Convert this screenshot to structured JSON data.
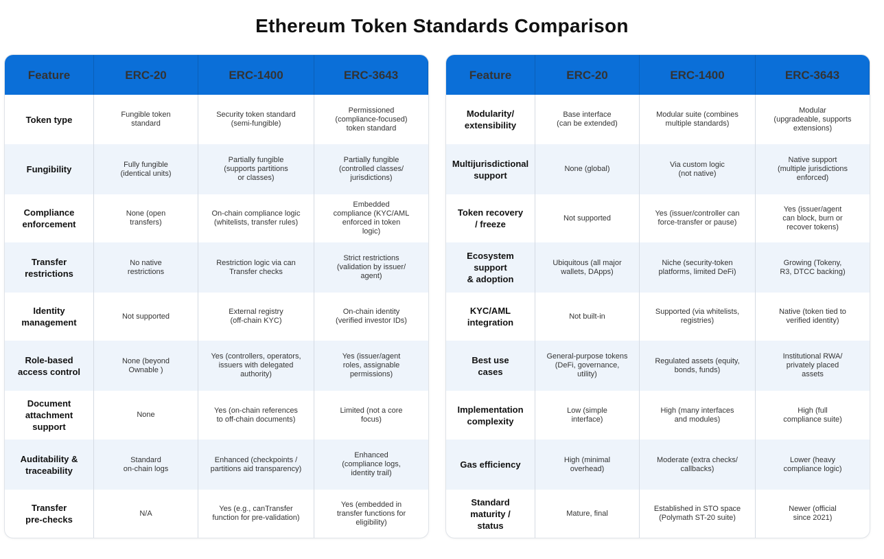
{
  "title": "Ethereum Token Standards Comparison",
  "colors": {
    "header_bg": "#0b6fd8",
    "alt_row_bg": "#eef4fb"
  },
  "headers": [
    "Feature",
    "ERC-20",
    "ERC-1400",
    "ERC-3643"
  ],
  "left_table": {
    "rows": [
      [
        "Token type",
        "Fungible token\nstandard",
        "Security token standard\n(semi-fungible)",
        "Permissioned\n(compliance-focused)\ntoken standard"
      ],
      [
        "Fungibility",
        "Fully fungible\n(identical units)",
        "Partially fungible\n(supports partitions\nor classes)",
        "Partially fungible\n(controlled classes/\njurisdictions)"
      ],
      [
        "Compliance\nenforcement",
        "None (open\ntransfers)",
        "On-chain compliance logic\n(whitelists, transfer rules)",
        "Embedded\ncompliance (KYC/AML\nenforced in token\nlogic)"
      ],
      [
        "Transfer\nrestrictions",
        "No native\nrestrictions",
        "Restriction logic via can\nTransfer checks",
        "Strict restrictions\n(validation by issuer/\nagent)"
      ],
      [
        "Identity\nmanagement",
        "Not supported",
        "External registry\n(off-chain KYC)",
        "On-chain identity\n(verified investor IDs)"
      ],
      [
        "Role-based\naccess control",
        "None (beyond\nOwnable )",
        "Yes (controllers, operators,\nissuers with delegated\nauthority)",
        "Yes (issuer/agent\nroles, assignable\npermissions)"
      ],
      [
        "Document\nattachment\nsupport",
        "None",
        "Yes (on-chain references\nto off-chain documents)",
        "Limited (not a core\nfocus)"
      ],
      [
        "Auditability &\ntraceability",
        "Standard\non-chain logs",
        "Enhanced (checkpoints /\npartitions aid transparency)",
        "Enhanced\n(compliance logs,\nidentity trail)"
      ],
      [
        "Transfer\npre-checks",
        "N/A",
        "Yes (e.g., canTransfer\nfunction for pre-validation)",
        "Yes (embedded in\ntransfer functions for\neligibility)"
      ]
    ]
  },
  "right_table": {
    "rows": [
      [
        "Modularity/\nextensibility",
        "Base interface\n(can be extended)",
        "Modular suite (combines\nmultiple standards)",
        "Modular\n(upgradeable, supports\nextensions)"
      ],
      [
        "Multijurisdictional\nsupport",
        "None (global)",
        "Via custom logic\n(not native)",
        "Native support\n(multiple jurisdictions\nenforced)"
      ],
      [
        "Token recovery\n/ freeze",
        "Not supported",
        "Yes (issuer/controller can\nforce-transfer or pause)",
        "Yes (issuer/agent\ncan block, burn or\nrecover tokens)"
      ],
      [
        "Ecosystem\nsupport\n& adoption",
        "Ubiquitous (all major\nwallets, DApps)",
        "Niche (security-token\nplatforms, limited DeFi)",
        "Growing (Tokeny,\nR3, DTCC backing)"
      ],
      [
        "KYC/AML\nintegration",
        "Not built-in",
        "Supported (via whitelists,\nregistries)",
        "Native (token tied to\nverified identity)"
      ],
      [
        "Best use\ncases",
        "General-purpose tokens\n(DeFi, governance,\nutility)",
        "Regulated assets (equity,\nbonds, funds)",
        "Institutional RWA/\nprivately placed\nassets"
      ],
      [
        "Implementation\ncomplexity",
        "Low (simple\ninterface)",
        "High (many interfaces\nand modules)",
        "High (full\ncompliance suite)"
      ],
      [
        "Gas efficiency",
        "High (minimal\noverhead)",
        "Moderate (extra checks/\ncallbacks)",
        "Lower (heavy\ncompliance logic)"
      ],
      [
        "Standard\nmaturity /\nstatus",
        "Mature, final",
        "Established in STO space\n(Polymath ST-20 suite)",
        "Newer (official\nsince 2021)"
      ]
    ]
  }
}
